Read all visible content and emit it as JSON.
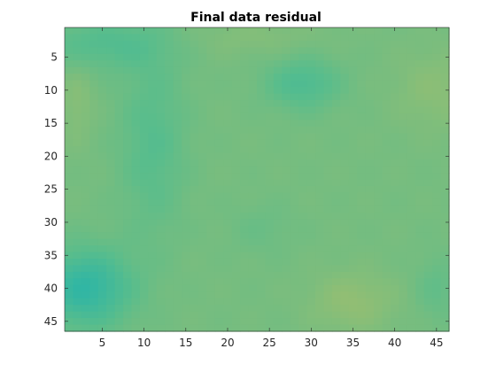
{
  "chart_data": {
    "type": "heatmap",
    "title": "Final data residual",
    "xlabel": "",
    "ylabel": "",
    "columns": 46,
    "rows": 46,
    "xlim": [
      0.5,
      46.5
    ],
    "ylim": [
      0.5,
      46.5
    ],
    "y_direction": "reversed",
    "x_ticks": [
      5,
      10,
      15,
      20,
      25,
      30,
      35,
      40,
      45
    ],
    "y_ticks": [
      5,
      10,
      15,
      20,
      25,
      30,
      35,
      40,
      45
    ],
    "colormap": "parula-mid",
    "color_range": [
      0,
      1
    ],
    "grid": false,
    "approximate_field": {
      "base": 0.62,
      "features": [
        {
          "x": 3,
          "y": 40,
          "sx": 5.5,
          "sy": 6,
          "amp": -0.3
        },
        {
          "x": 11,
          "y": 18,
          "sx": 4,
          "sy": 14,
          "amp": -0.13
        },
        {
          "x": 5,
          "y": 3,
          "sx": 8,
          "sy": 4,
          "amp": -0.14
        },
        {
          "x": 29,
          "y": 9,
          "sx": 4.5,
          "sy": 4,
          "amp": -0.17
        },
        {
          "x": 35,
          "y": 42,
          "sx": 5,
          "sy": 4.5,
          "amp": 0.11
        },
        {
          "x": 45,
          "y": 10,
          "sx": 5,
          "sy": 6,
          "amp": 0.08
        },
        {
          "x": 2,
          "y": 12,
          "sx": 2,
          "sy": 6,
          "amp": 0.07
        },
        {
          "x": 45,
          "y": 40,
          "sx": 2.5,
          "sy": 5,
          "amp": -0.08
        },
        {
          "x": 23,
          "y": 2,
          "sx": 8,
          "sy": 3,
          "amp": 0.05
        },
        {
          "x": 24,
          "y": 31,
          "sx": 4,
          "sy": 4,
          "amp": -0.05
        }
      ]
    }
  }
}
